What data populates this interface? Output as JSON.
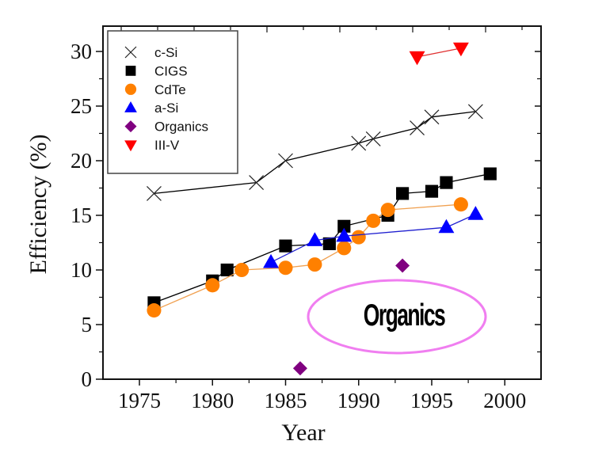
{
  "chart_data": {
    "type": "line",
    "title": "",
    "xlabel": "Year",
    "ylabel": "Efficiency (%)",
    "xlim": [
      1972.5,
      2002.5
    ],
    "ylim": [
      0,
      32
    ],
    "xticks": [
      1975,
      1980,
      1985,
      1990,
      1995,
      2000
    ],
    "xtick_labels": [
      "1975",
      "1980",
      "1985",
      "1990",
      "1995",
      "2000"
    ],
    "yticks": [
      0,
      5,
      10,
      15,
      20,
      25,
      30
    ],
    "ytick_labels": [
      "0",
      "5",
      "10",
      "15",
      "20",
      "25",
      "30"
    ],
    "grid": false,
    "legend_position": "top-left",
    "series": [
      {
        "name": "c-Si",
        "marker": "x",
        "color": "#000000",
        "line_color": "#000000",
        "x": [
          1976,
          1983,
          1985,
          1990,
          1991,
          1994,
          1995,
          1998
        ],
        "y": [
          17.0,
          18.0,
          20.0,
          21.6,
          22.0,
          23.0,
          24.0,
          24.5
        ]
      },
      {
        "name": "CIGS",
        "marker": "square",
        "color": "#000000",
        "line_color": "#000000",
        "x": [
          1976,
          1980,
          1981,
          1985,
          1988,
          1989,
          1992,
          1993,
          1995,
          1996,
          1999
        ],
        "y": [
          7.0,
          9.0,
          10.0,
          12.2,
          12.4,
          14.0,
          15.0,
          17.0,
          17.2,
          18.0,
          18.8
        ]
      },
      {
        "name": "CdTe",
        "marker": "circle",
        "color": "#ff8000",
        "line_color": "#f0a050",
        "x": [
          1976,
          1980,
          1982,
          1985,
          1987,
          1989,
          1990,
          1991,
          1992,
          1997
        ],
        "y": [
          6.3,
          8.6,
          10.0,
          10.2,
          10.5,
          12.0,
          13.0,
          14.5,
          15.5,
          16.0
        ]
      },
      {
        "name": "a-Si",
        "marker": "triangle-up",
        "color": "#0000ff",
        "line_color": "#2020d0",
        "x": [
          1984,
          1987,
          1989,
          1996,
          1998
        ],
        "y": [
          10.7,
          12.7,
          13.1,
          13.9,
          15.1
        ]
      },
      {
        "name": "Organics",
        "marker": "diamond",
        "color": "#800080",
        "line_color": null,
        "x": [
          1986,
          1993
        ],
        "y": [
          1.0,
          10.4
        ]
      },
      {
        "name": "III-V",
        "marker": "triangle-down",
        "color": "#ff0000",
        "line_color": "#e03030",
        "x": [
          1994,
          1997
        ],
        "y": [
          29.5,
          30.3
        ]
      }
    ],
    "annotations": [
      {
        "text": "Organics",
        "shape": "ellipse",
        "outline_color": "#f07ef0",
        "center_data": [
          1993.5,
          5.8
        ]
      }
    ]
  }
}
